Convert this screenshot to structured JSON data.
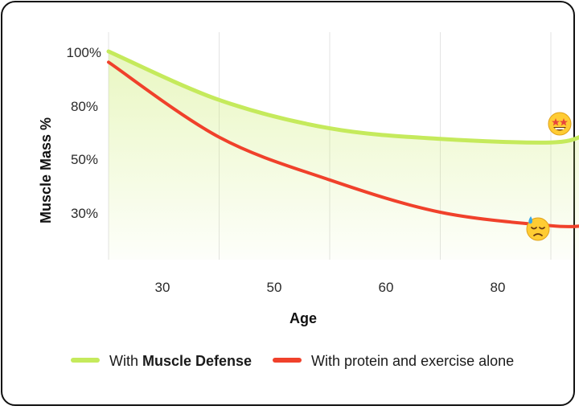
{
  "chart_data": {
    "type": "line",
    "x_ticks": [
      "30",
      "50",
      "60",
      "80"
    ],
    "y_ticks": [
      "100%",
      "80%",
      "50%",
      "30%"
    ],
    "xlabel": "Age",
    "ylabel": "Muscle Mass %",
    "legend_position": "bottom",
    "grid": "vertical",
    "series": [
      {
        "legend_prefix": "With ",
        "legend_bold": "Muscle Defense",
        "color": "#c5ea5c",
        "fill_area": true,
        "end_icon": "star-struck-emoji-icon",
        "points": [
          [
            0,
            100
          ],
          [
            1,
            82
          ],
          [
            2,
            67
          ],
          [
            3,
            61
          ],
          [
            4,
            59
          ],
          [
            4.3,
            63
          ]
        ]
      },
      {
        "legend_prefix": "With protein and exercise alone",
        "legend_bold": "",
        "color": "#f0412b",
        "fill_area": false,
        "end_icon": "downcast-sweat-emoji-icon",
        "points": [
          [
            0,
            96
          ],
          [
            1,
            62
          ],
          [
            2,
            42
          ],
          [
            3,
            30
          ],
          [
            4,
            25
          ],
          [
            4.3,
            25
          ]
        ]
      }
    ]
  }
}
